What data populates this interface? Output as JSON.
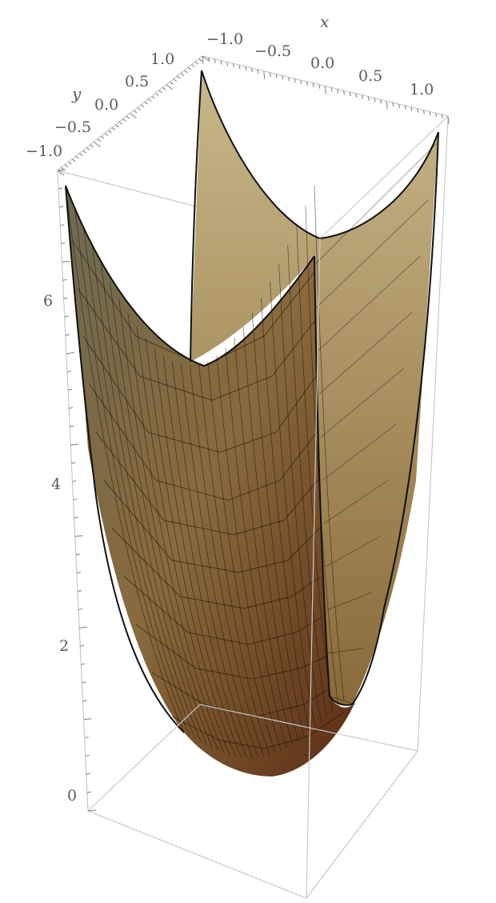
{
  "chart_data": {
    "type": "surface3d",
    "x": {
      "label": "x",
      "range": [
        -1.0,
        1.0
      ],
      "tick_labels": [
        "−1.0",
        "−0.5",
        "0.0",
        "0.5",
        "1.0"
      ]
    },
    "y": {
      "label": "y",
      "range": [
        -1.0,
        1.0
      ],
      "tick_labels": [
        "−1.0",
        "−0.5",
        "0.0",
        "0.5",
        "1.0"
      ]
    },
    "z": {
      "label": "",
      "range": [
        0,
        7
      ],
      "tick_labels": [
        "0",
        "2",
        "4",
        "6"
      ]
    },
    "surface": {
      "grid_x": [
        -1.0,
        -0.75,
        -0.5,
        -0.25,
        0.0,
        0.25,
        0.5,
        0.75,
        1.0
      ],
      "grid_y": [
        -1.0,
        -0.75,
        -0.5,
        -0.25,
        0.0,
        0.25,
        0.5,
        0.75,
        1.0
      ],
      "z_min": 0.0,
      "z_max": 7.0,
      "shape": "bowl (elliptic paraboloid)"
    },
    "colors": {
      "surface_light": "#a89a6c",
      "surface_dark": "#5b2a14",
      "box": "#c8c8c8",
      "mesh": "#1a1208"
    }
  }
}
